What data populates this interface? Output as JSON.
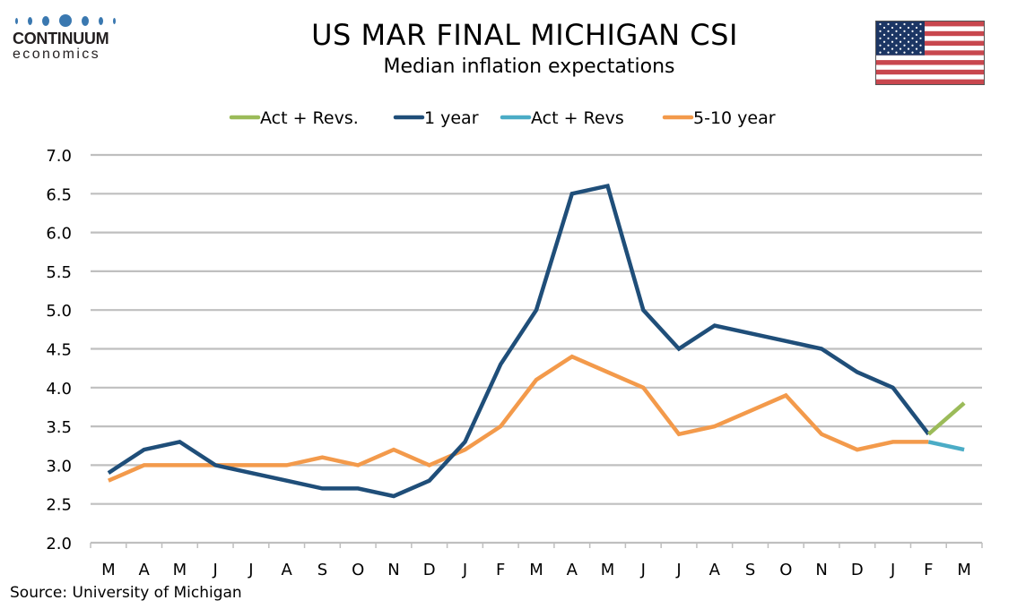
{
  "header": {
    "logo_main": "CONTINUUM",
    "logo_sub": "economics",
    "title": "US MAR FINAL MICHIGAN CSI",
    "subtitle": "Median inflation expectations",
    "flag_icon": "us-flag-icon"
  },
  "footer": {
    "source": "Source: University of Michigan"
  },
  "colors": {
    "one_year": "#1f4e79",
    "five_ten_year": "#f39a4b",
    "act_revs_green": "#9bbb59",
    "act_revs_blue": "#4bacc6",
    "gridline": "#bfbfbf",
    "logo_blue": "#3a78b0"
  },
  "chart_data": {
    "type": "line",
    "title": "US MAR FINAL MICHIGAN CSI",
    "subtitle": "Median inflation expectations",
    "xlabel": "",
    "ylabel": "",
    "ylim": [
      2.0,
      7.0
    ],
    "yticks": [
      "7.0",
      "6.5",
      "6.0",
      "5.5",
      "5.0",
      "4.5",
      "4.0",
      "3.5",
      "3.0",
      "2.5",
      "2.0"
    ],
    "ytick_values": [
      7.0,
      6.5,
      6.0,
      5.5,
      5.0,
      4.5,
      4.0,
      3.5,
      3.0,
      2.5,
      2.0
    ],
    "grid": true,
    "legend_position": "top",
    "categories": [
      "M",
      "A",
      "M",
      "J",
      "J",
      "A",
      "S",
      "O",
      "N",
      "D",
      "J",
      "F",
      "M",
      "A",
      "M",
      "J",
      "J",
      "A",
      "S",
      "O",
      "N",
      "D",
      "J",
      "F",
      "M"
    ],
    "legend": [
      "Act + Revs.",
      "1 year",
      "Act + Revs",
      "5-10 year"
    ],
    "series": [
      {
        "name": "Act + Revs.",
        "color": "#9bbb59",
        "start_index": 23,
        "values": [
          3.4,
          3.8
        ]
      },
      {
        "name": "1 year",
        "color": "#1f4e79",
        "start_index": 0,
        "values": [
          2.9,
          3.2,
          3.3,
          3.0,
          2.9,
          2.8,
          2.7,
          2.7,
          2.6,
          2.8,
          3.3,
          4.3,
          5.0,
          6.5,
          6.6,
          5.0,
          4.5,
          4.8,
          4.7,
          4.6,
          4.5,
          4.2,
          4.0,
          3.4
        ]
      },
      {
        "name": "Act + Revs",
        "color": "#4bacc6",
        "start_index": 23,
        "values": [
          3.3,
          3.2
        ]
      },
      {
        "name": "5-10 year",
        "color": "#f39a4b",
        "start_index": 0,
        "values": [
          2.8,
          3.0,
          3.0,
          3.0,
          3.0,
          3.0,
          3.1,
          3.0,
          3.2,
          3.0,
          3.2,
          3.5,
          4.1,
          4.4,
          4.2,
          4.0,
          3.4,
          3.5,
          3.7,
          3.9,
          3.4,
          3.2,
          3.3,
          3.3
        ]
      }
    ]
  }
}
